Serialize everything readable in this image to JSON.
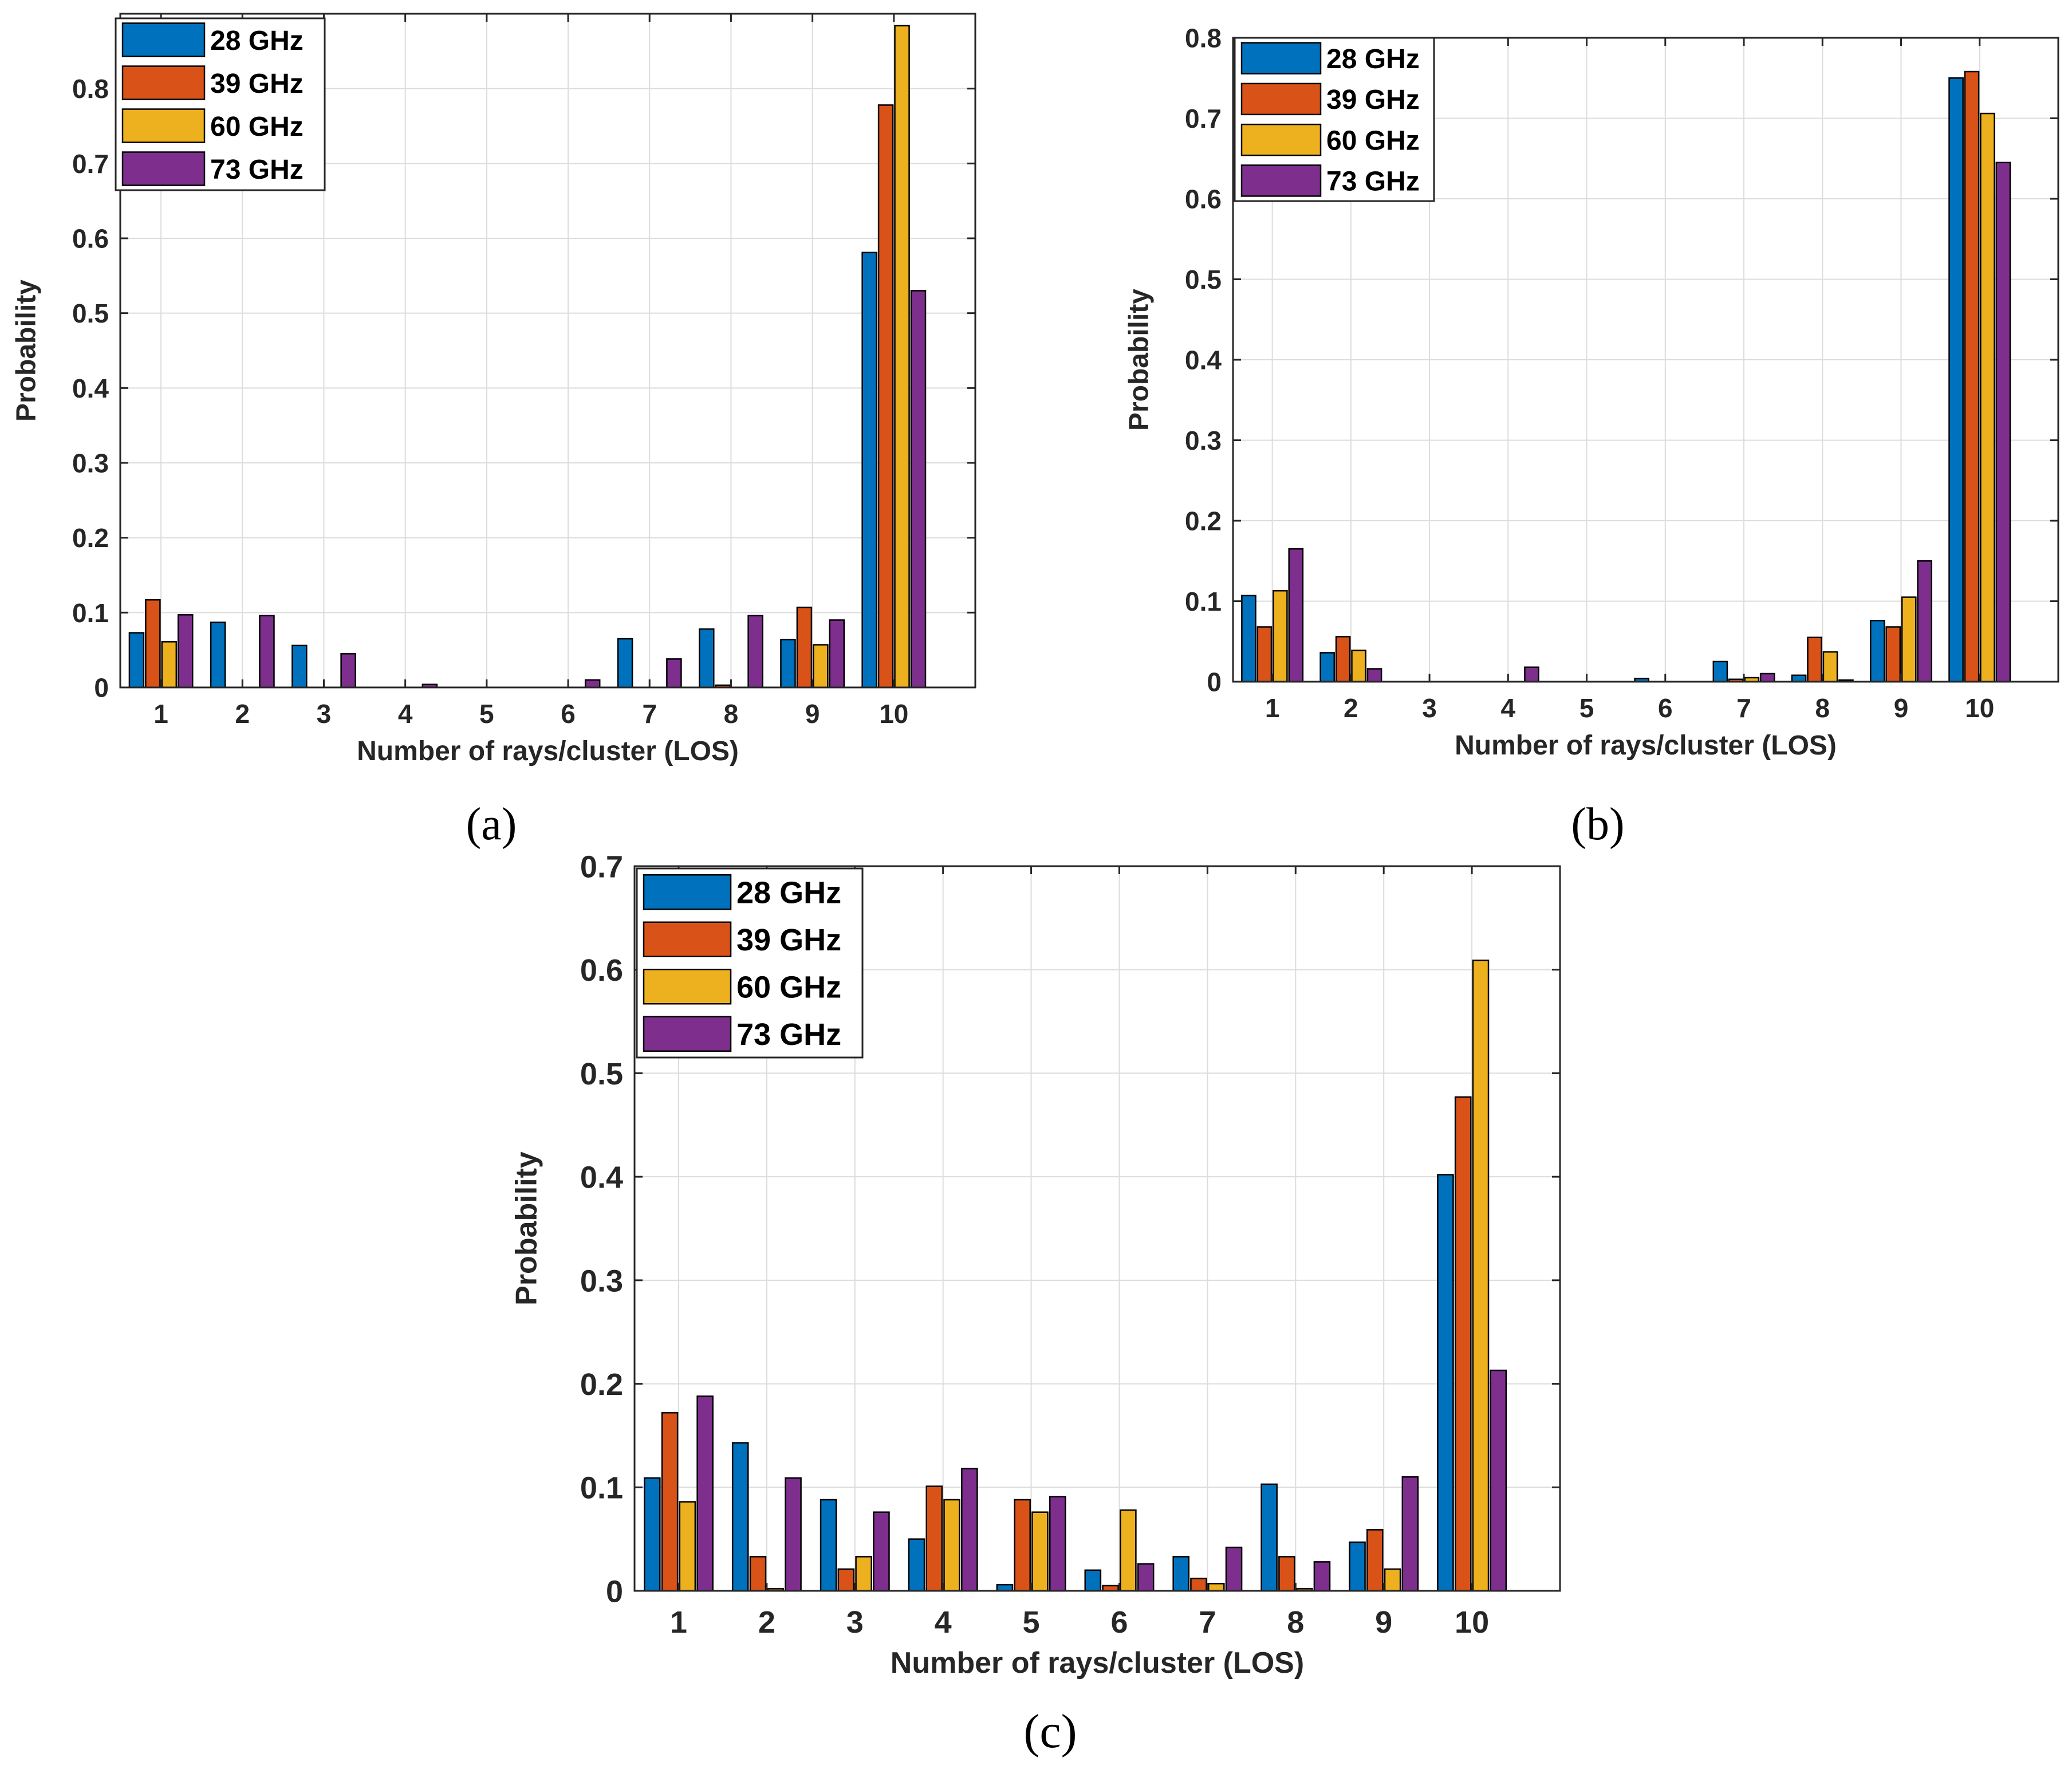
{
  "colors": {
    "28 GHz": "#0072BD",
    "39 GHz": "#D95319",
    "60 GHz": "#EDB120",
    "73 GHz": "#7E2F8E"
  },
  "chart_data": [
    {
      "type": "bar",
      "panel_label": "(a)",
      "xlabel": "Number of rays/cluster (LOS)",
      "ylabel": "Probability",
      "categories": [
        "1",
        "2",
        "3",
        "4",
        "5",
        "6",
        "7",
        "8",
        "9",
        "10"
      ],
      "ylim": [
        0,
        0.9
      ],
      "yticks": [
        0,
        0.1,
        0.2,
        0.3,
        0.4,
        0.5,
        0.6,
        0.7,
        0.8
      ],
      "ytick_labels": [
        "0",
        "0.1",
        "0.2",
        "0.3",
        "0.4",
        "0.5",
        "0.6",
        "0.7",
        "0.8"
      ],
      "grid": true,
      "legend_position": "top-left",
      "series": [
        {
          "name": "28 GHz",
          "values": [
            0.073,
            0.087,
            0.056,
            0,
            0,
            0,
            0.065,
            0.078,
            0.064,
            0.581
          ]
        },
        {
          "name": "39 GHz",
          "values": [
            0.117,
            0,
            0,
            0,
            0,
            0,
            0,
            0.003,
            0.107,
            0.778
          ]
        },
        {
          "name": "60 GHz",
          "values": [
            0.061,
            0,
            0,
            0,
            0,
            0,
            0,
            0,
            0.057,
            0.884
          ]
        },
        {
          "name": "73 GHz",
          "values": [
            0.097,
            0.096,
            0.045,
            0.004,
            0,
            0.01,
            0.038,
            0.096,
            0.09,
            0.53
          ]
        }
      ]
    },
    {
      "type": "bar",
      "panel_label": "(b)",
      "xlabel": "Number of rays/cluster (LOS)",
      "ylabel": "Probability",
      "categories": [
        "1",
        "2",
        "3",
        "4",
        "5",
        "6",
        "7",
        "8",
        "9",
        "10"
      ],
      "ylim": [
        0,
        0.8
      ],
      "yticks": [
        0,
        0.1,
        0.2,
        0.3,
        0.4,
        0.5,
        0.6,
        0.7,
        0.8
      ],
      "ytick_labels": [
        "0",
        "0.1",
        "0.2",
        "0.3",
        "0.4",
        "0.5",
        "0.6",
        "0.7",
        "0.8"
      ],
      "grid": true,
      "legend_position": "top-left",
      "series": [
        {
          "name": "28 GHz",
          "values": [
            0.107,
            0.036,
            0,
            0,
            0,
            0.004,
            0.025,
            0.008,
            0.076,
            0.75
          ]
        },
        {
          "name": "39 GHz",
          "values": [
            0.068,
            0.056,
            0,
            0,
            0,
            0,
            0.003,
            0.055,
            0.068,
            0.758
          ]
        },
        {
          "name": "60 GHz",
          "values": [
            0.113,
            0.039,
            0,
            0,
            0,
            0,
            0.005,
            0.037,
            0.105,
            0.706
          ]
        },
        {
          "name": "73 GHz",
          "values": [
            0.165,
            0.016,
            0,
            0.018,
            0,
            0,
            0.01,
            0.002,
            0.15,
            0.645
          ]
        }
      ]
    },
    {
      "type": "bar",
      "panel_label": "(c)",
      "xlabel": "Number of rays/cluster (LOS)",
      "ylabel": "Probability",
      "categories": [
        "1",
        "2",
        "3",
        "4",
        "5",
        "6",
        "7",
        "8",
        "9",
        "10"
      ],
      "ylim": [
        0,
        0.7
      ],
      "yticks": [
        0,
        0.1,
        0.2,
        0.3,
        0.4,
        0.5,
        0.6,
        0.7
      ],
      "ytick_labels": [
        "0",
        "0.1",
        "0.2",
        "0.3",
        "0.4",
        "0.5",
        "0.6",
        "0.7"
      ],
      "grid": true,
      "legend_position": "top-left",
      "series": [
        {
          "name": "28 GHz",
          "values": [
            0.109,
            0.143,
            0.088,
            0.05,
            0.006,
            0.02,
            0.033,
            0.103,
            0.047,
            0.402
          ]
        },
        {
          "name": "39 GHz",
          "values": [
            0.172,
            0.033,
            0.021,
            0.101,
            0.088,
            0.005,
            0.012,
            0.033,
            0.059,
            0.477
          ]
        },
        {
          "name": "60 GHz",
          "values": [
            0.086,
            0.002,
            0.033,
            0.088,
            0.076,
            0.078,
            0.007,
            0.002,
            0.021,
            0.609
          ]
        },
        {
          "name": "73 GHz",
          "values": [
            0.188,
            0.109,
            0.076,
            0.118,
            0.091,
            0.026,
            0.042,
            0.028,
            0.11,
            0.213
          ]
        }
      ]
    }
  ]
}
